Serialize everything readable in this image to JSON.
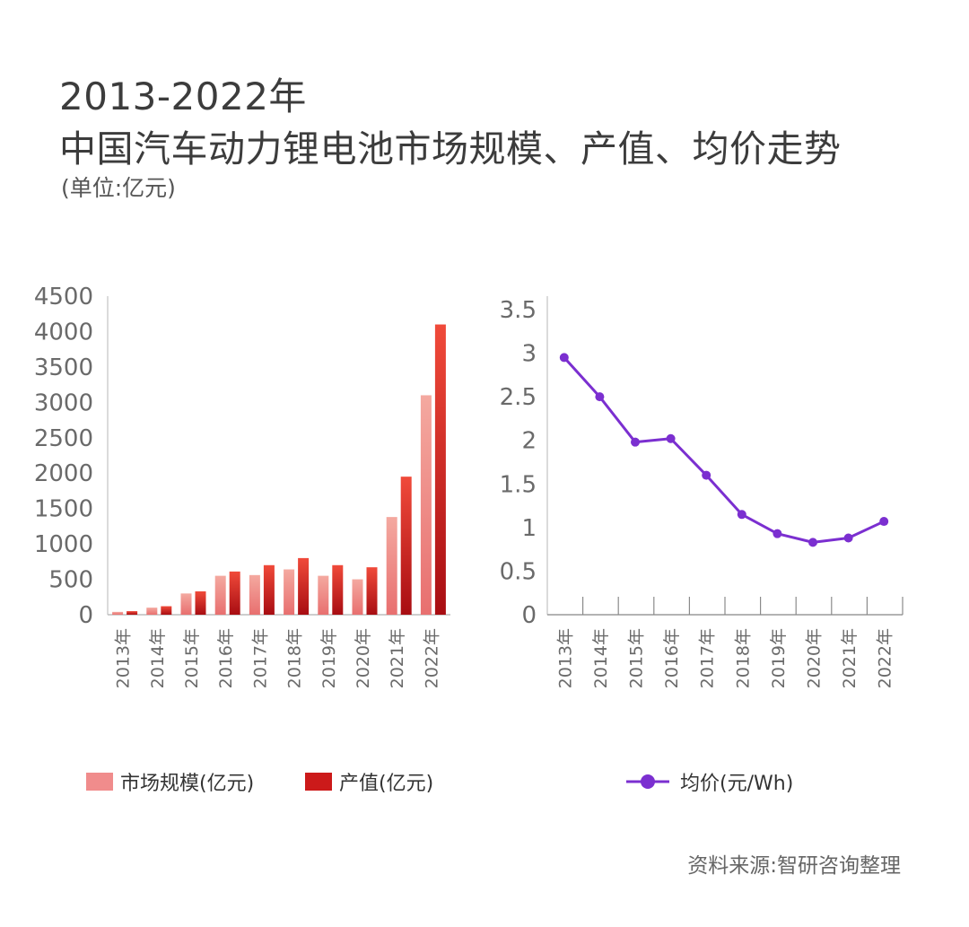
{
  "title": {
    "line1": "2013-2022年",
    "line2": "中国汽车动力锂电池市场规模、产值、均价走势",
    "unit": "(单位:亿元)"
  },
  "source": "资料来源:智研咨询整理",
  "colors": {
    "market_size": "#f08c8c",
    "output_value": "#cc1a1a",
    "price_line": "#7b2fd0",
    "price_marker": "#7b2fd0"
  },
  "legend": {
    "market_size": "市场规模(亿元)",
    "output_value": "产值(亿元)",
    "avg_price": "均价(元/Wh)"
  },
  "chart_data": [
    {
      "type": "bar",
      "categories": [
        "2013年",
        "2014年",
        "2015年",
        "2016年",
        "2017年",
        "2018年",
        "2019年",
        "2020年",
        "2021年",
        "2022年"
      ],
      "series": [
        {
          "name": "市场规模(亿元)",
          "values": [
            40,
            100,
            300,
            550,
            560,
            640,
            550,
            500,
            1380,
            3100
          ]
        },
        {
          "name": "产值(亿元)",
          "values": [
            50,
            120,
            330,
            610,
            700,
            800,
            700,
            670,
            1950,
            4100
          ]
        }
      ],
      "yticks": [
        "4500",
        "4000",
        "3500",
        "3000",
        "2500",
        "2000",
        "1500",
        "1000",
        "500",
        "0"
      ],
      "ylim": [
        0,
        4500
      ],
      "grid": false
    },
    {
      "type": "line",
      "categories": [
        "2013年",
        "2014年",
        "2015年",
        "2016年",
        "2017年",
        "2018年",
        "2019年",
        "2020年",
        "2021年",
        "2022年"
      ],
      "series": [
        {
          "name": "均价(元/Wh)",
          "values": [
            2.95,
            2.5,
            1.98,
            2.02,
            1.6,
            1.15,
            0.93,
            0.83,
            0.88,
            1.07
          ]
        }
      ],
      "yticks": [
        "3.5",
        "3",
        "2.5",
        "2",
        "1.5",
        "1",
        "0.5",
        "0"
      ],
      "ylim": [
        0,
        3.5
      ],
      "grid": false
    }
  ]
}
